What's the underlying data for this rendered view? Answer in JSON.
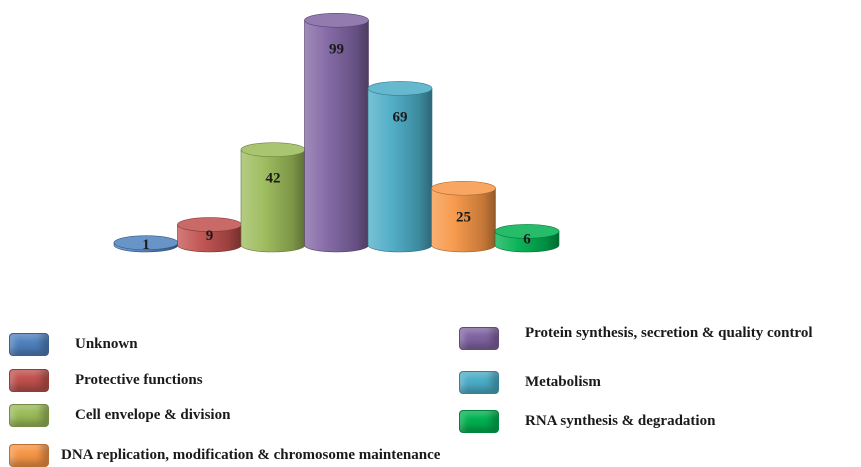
{
  "chart_data": {
    "type": "bar",
    "style": "3d-cylinder",
    "categories": [
      "Unknown",
      "Protective functions",
      "Cell envelope & division",
      "Protein synthesis, secretion & quality control",
      "Metabolism",
      "DNA replication, modification & chromosome maintenance",
      "RNA synthesis & degradation"
    ],
    "values": [
      1,
      9,
      42,
      99,
      69,
      25,
      6
    ],
    "colors": [
      "#4f81bd",
      "#c0504d",
      "#9bbb59",
      "#8064a2",
      "#4bacc6",
      "#f79646",
      "#00b050"
    ],
    "value_labels": [
      "1",
      "9",
      "42",
      "99",
      "69",
      "25",
      "6"
    ],
    "legend_placement": "bottom",
    "grid": false,
    "axes_visible": false,
    "ylim": [
      0,
      99
    ]
  },
  "legend": {
    "unknown": "Unknown",
    "protective": "Protective functions",
    "cell_envelope": "Cell envelope & division",
    "protein": "Protein synthesis, secretion & quality control",
    "metabolism": "Metabolism",
    "rna": "RNA synthesis & degradation",
    "dna": "DNA replication, modification & chromosome maintenance"
  }
}
